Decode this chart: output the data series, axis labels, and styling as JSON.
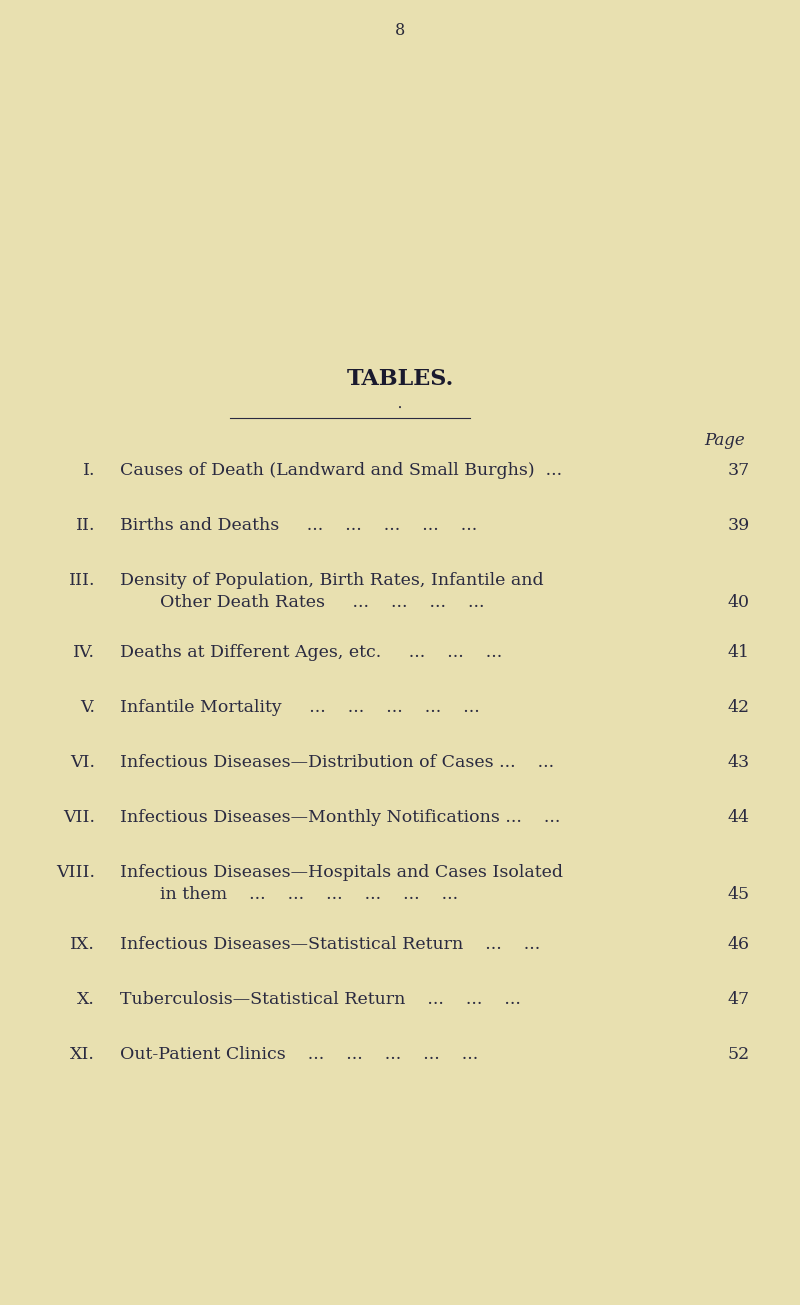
{
  "background_color": "#e8e0b0",
  "page_number": "8",
  "page_num_color": "#2a2a3a",
  "title": "TABLES.",
  "title_color": "#1a1a2e",
  "page_label": "Page",
  "entries": [
    {
      "num": "I.",
      "line1": "Causes of Death (Landward and Small Burghs)  ...",
      "line2": null,
      "page": "37"
    },
    {
      "num": "II.",
      "line1": "Births and Deaths     ...    ...    ...    ...    ...",
      "line2": null,
      "page": "39"
    },
    {
      "num": "III.",
      "line1": "Density of Population, Birth Rates, Infantile and",
      "line2": "Other Death Rates     ...    ...    ...    ...",
      "page": "40"
    },
    {
      "num": "IV.",
      "line1": "Deaths at Different Ages, etc.     ...    ...    ...",
      "line2": null,
      "page": "41"
    },
    {
      "num": "V.",
      "line1": "Infantile Mortality     ...    ...    ...    ...    ...",
      "line2": null,
      "page": "42"
    },
    {
      "num": "VI.",
      "line1": "Infectious Diseases—Distribution of Cases ...    ...",
      "line2": null,
      "page": "43"
    },
    {
      "num": "VII.",
      "line1": "Infectious Diseases—Monthly Notifications ...    ...",
      "line2": null,
      "page": "44"
    },
    {
      "num": "VIII.",
      "line1": "Infectious Diseases—Hospitals and Cases Isolated",
      "line2": "in them    ...    ...    ...    ...    ...    ...",
      "page": "45"
    },
    {
      "num": "IX.",
      "line1": "Infectious Diseases—Statistical Return    ...    ...",
      "line2": null,
      "page": "46"
    },
    {
      "num": "X.",
      "line1": "Tuberculosis—Statistical Return    ...    ...    ...",
      "line2": null,
      "page": "47"
    },
    {
      "num": "XI.",
      "line1": "Out-Patient Clinics    ...    ...    ...    ...    ...",
      "line2": null,
      "page": "52"
    }
  ],
  "text_color": "#2a2a40",
  "font_size": 12.5,
  "title_font_size": 16,
  "page_num_font_size": 11.5,
  "fig_width": 8.0,
  "fig_height": 13.05,
  "dpi": 100
}
